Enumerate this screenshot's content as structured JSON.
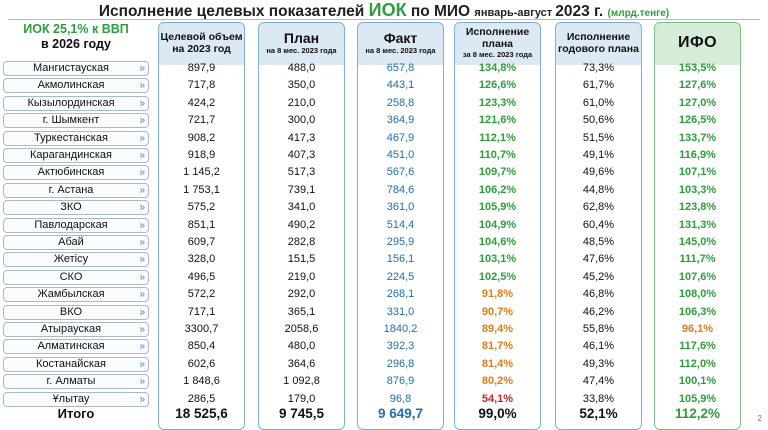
{
  "title": {
    "pre": "Исполнение целевых показателей ",
    "accent": "ИОК",
    "post": " по МИО ",
    "small": "январь-август ",
    "year": "2023 г. ",
    "unit": "(млрд.тенге)"
  },
  "subtitle": {
    "line1": "ИОК 25,1% к ВВП",
    "line2": "в 2026 году"
  },
  "headers": {
    "target": {
      "l1": "Целевой объем",
      "l2": "на 2023 год"
    },
    "plan": {
      "l1": "План",
      "l2": "на 8 мес. 2023 года"
    },
    "fact": {
      "l1": "Факт",
      "l2": "на 8 мес. 2023 года"
    },
    "exec": {
      "l1": "Исполнение",
      "l2": "плана",
      "l3": "за 8 мес. 2023 года"
    },
    "annual": {
      "l1": "Исполнение",
      "l2": "годового плана"
    },
    "ifo": {
      "l1": "ИФО"
    }
  },
  "colors": {
    "accent_green": "#2e9e3c",
    "fact_blue": "#1f6fb2",
    "warn_orange": "#e07b1a",
    "alert_red": "#d22020"
  },
  "rows": [
    {
      "region": "Мангистауская",
      "target": "897,9",
      "plan": "488,0",
      "fact": "657,8",
      "exec": "134,8%",
      "exec_color": "green",
      "annual": "73,3%",
      "ifo": "153,5%",
      "ifo_color": "green"
    },
    {
      "region": "Акмолинская",
      "target": "717,8",
      "plan": "350,0",
      "fact": "443,1",
      "exec": "126,6%",
      "exec_color": "green",
      "annual": "61,7%",
      "ifo": "127,6%",
      "ifo_color": "green"
    },
    {
      "region": "Кызылординская",
      "target": "424,2",
      "plan": "210,0",
      "fact": "258,8",
      "exec": "123,3%",
      "exec_color": "green",
      "annual": "61,0%",
      "ifo": "127,0%",
      "ifo_color": "green"
    },
    {
      "region": "г. Шымкент",
      "target": "721,7",
      "plan": "300,0",
      "fact": "364,9",
      "exec": "121,6%",
      "exec_color": "green",
      "annual": "50,6%",
      "ifo": "126,5%",
      "ifo_color": "green"
    },
    {
      "region": "Туркестанская",
      "target": "908,2",
      "plan": "417,3",
      "fact": "467,9",
      "exec": "112,1%",
      "exec_color": "green",
      "annual": "51,5%",
      "ifo": "133,7%",
      "ifo_color": "green"
    },
    {
      "region": "Карагандинская",
      "target": "918,9",
      "plan": "407,3",
      "fact": "451,0",
      "exec": "110,7%",
      "exec_color": "green",
      "annual": "49,1%",
      "ifo": "116,9%",
      "ifo_color": "green"
    },
    {
      "region": "Актюбинская",
      "target": "1 145,2",
      "plan": "517,3",
      "fact": "567,6",
      "exec": "109,7%",
      "exec_color": "green",
      "annual": "49,6%",
      "ifo": "107,1%",
      "ifo_color": "green"
    },
    {
      "region": "г. Астана",
      "target": "1 753,1",
      "plan": "739,1",
      "fact": "784,6",
      "exec": "106,2%",
      "exec_color": "green",
      "annual": "44,8%",
      "ifo": "103,3%",
      "ifo_color": "green"
    },
    {
      "region": "ЗКО",
      "target": "575,2",
      "plan": "341,0",
      "fact": "361,0",
      "exec": "105,9%",
      "exec_color": "green",
      "annual": "62,8%",
      "ifo": "123,8%",
      "ifo_color": "green"
    },
    {
      "region": "Павлодарская",
      "target": "851,1",
      "plan": "490,2",
      "fact": "514,4",
      "exec": "104,9%",
      "exec_color": "green",
      "annual": "60,4%",
      "ifo": "131,3%",
      "ifo_color": "green"
    },
    {
      "region": "Абай",
      "target": "609,7",
      "plan": "282,8",
      "fact": "295,9",
      "exec": "104,6%",
      "exec_color": "green",
      "annual": "48,5%",
      "ifo": "145,0%",
      "ifo_color": "green"
    },
    {
      "region": "Жетісу",
      "target": "328,0",
      "plan": "151,5",
      "fact": "156,1",
      "exec": "103,1%",
      "exec_color": "green",
      "annual": "47,6%",
      "ifo": "111,7%",
      "ifo_color": "green"
    },
    {
      "region": "СКО",
      "target": "496,5",
      "plan": "219,0",
      "fact": "224,5",
      "exec": "102,5%",
      "exec_color": "green",
      "annual": "45,2%",
      "ifo": "107,6%",
      "ifo_color": "green"
    },
    {
      "region": "Жамбылская",
      "target": "572,2",
      "plan": "292,0",
      "fact": "268,1",
      "exec": "91,8%",
      "exec_color": "orange",
      "annual": "46,8%",
      "ifo": "108,0%",
      "ifo_color": "green"
    },
    {
      "region": "ВКО",
      "target": "717,1",
      "plan": "365,1",
      "fact": "331,0",
      "exec": "90,7%",
      "exec_color": "orange",
      "annual": "46,2%",
      "ifo": "106,3%",
      "ifo_color": "green"
    },
    {
      "region": "Атырауская",
      "target": "3300,7",
      "plan": "2058,6",
      "fact": "1840,2",
      "exec": "89,4%",
      "exec_color": "orange",
      "annual": "55,8%",
      "ifo": "96,1%",
      "ifo_color": "orange"
    },
    {
      "region": "Алматинская",
      "target": "850,4",
      "plan": "480,0",
      "fact": "392,3",
      "exec": "81,7%",
      "exec_color": "orange",
      "annual": "46,1%",
      "ifo": "117,6%",
      "ifo_color": "green"
    },
    {
      "region": "Костанайская",
      "target": "602,6",
      "plan": "364,6",
      "fact": "296,8",
      "exec": "81,4%",
      "exec_color": "orange",
      "annual": "49,3%",
      "ifo": "112,0%",
      "ifo_color": "green"
    },
    {
      "region": "г. Алматы",
      "target": "1 848,6",
      "plan": "1 092,8",
      "fact": "876,9",
      "exec": "80,2%",
      "exec_color": "orange",
      "annual": "47,4%",
      "ifo": "100,1%",
      "ifo_color": "green"
    },
    {
      "region": "Ұлытау",
      "target": "286,5",
      "plan": "179,0",
      "fact": "96,8",
      "exec": "54,1%",
      "exec_color": "red",
      "annual": "33,8%",
      "ifo": "105,9%",
      "ifo_color": "green"
    }
  ],
  "total": {
    "label": "Итого",
    "target": "18 525,6",
    "plan": "9 745,5",
    "fact": "9 649,7",
    "exec": "99,0%",
    "annual": "52,1%",
    "ifo": "112,2%"
  },
  "page_number": "2"
}
